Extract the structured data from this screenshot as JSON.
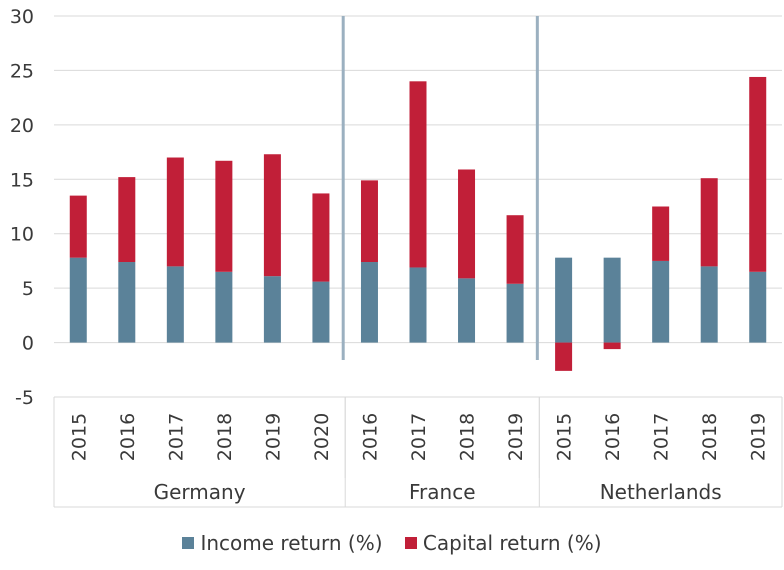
{
  "chart_data": {
    "type": "bar",
    "stacked": true,
    "title": "",
    "xlabel": "",
    "ylabel": "",
    "ylim": [
      -5,
      30
    ],
    "yticks": [
      30,
      25,
      20,
      15,
      10,
      5,
      0,
      -5
    ],
    "grid": true,
    "legend_position": "bottom",
    "groups": [
      {
        "name": "Germany",
        "years": [
          "2015",
          "2016",
          "2017",
          "2018",
          "2019",
          "2020"
        ]
      },
      {
        "name": "France",
        "years": [
          "2016",
          "2017",
          "2018",
          "2019"
        ]
      },
      {
        "name": "Netherlands",
        "years": [
          "2015",
          "2016",
          "2017",
          "2018",
          "2019"
        ]
      }
    ],
    "series": [
      {
        "name": "Income return (%)",
        "color": "#5b8299",
        "values": [
          7.8,
          7.4,
          7.0,
          6.5,
          6.1,
          5.6,
          7.4,
          6.9,
          5.9,
          5.4,
          7.8,
          7.8,
          7.5,
          7.0,
          6.5
        ]
      },
      {
        "name": "Capital return (%)",
        "color": "#c11f38",
        "values": [
          5.7,
          7.8,
          10.0,
          10.2,
          11.2,
          8.1,
          7.5,
          17.1,
          10.0,
          6.3,
          -2.6,
          -0.6,
          5.0,
          8.1,
          17.9
        ]
      }
    ]
  }
}
